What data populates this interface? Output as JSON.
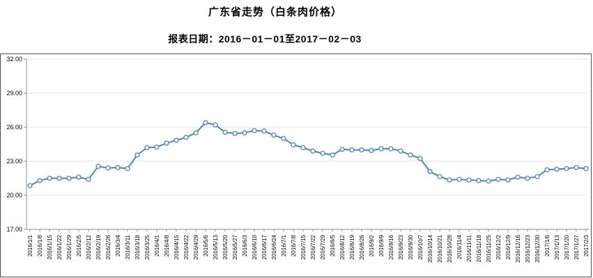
{
  "page": {
    "title": "广东省走势（白条肉价格）",
    "subtitle": "报表日期：2016－01－01至2017－02－03"
  },
  "chart_data": {
    "type": "line",
    "title": "广东省走势（白条肉价格）",
    "subtitle": "报表日期：2016－01－01至2017－02－03",
    "series_name": "白条肉价格",
    "x": [
      "2016/1/1",
      "2016/1/8",
      "2016/1/15",
      "2016/1/22",
      "2016/1/29",
      "2016/2/5",
      "2016/2/12",
      "2016/2/19",
      "2016/2/26",
      "2016/3/4",
      "2016/3/11",
      "2016/3/18",
      "2016/3/25",
      "2016/4/1",
      "2016/4/8",
      "2016/4/15",
      "2016/4/22",
      "2016/4/29",
      "2016/5/6",
      "2016/5/13",
      "2016/5/20",
      "2016/5/27",
      "2016/6/3",
      "2016/6/10",
      "2016/6/17",
      "2016/6/24",
      "2016/7/1",
      "2016/7/8",
      "2016/7/15",
      "2016/7/22",
      "2016/7/29",
      "2016/8/5",
      "2016/8/12",
      "2016/8/19",
      "2016/8/26",
      "2016/9/2",
      "2016/9/9",
      "2016/9/16",
      "2016/9/23",
      "2016/9/30",
      "2016/10/7",
      "2016/10/14",
      "2016/10/21",
      "2016/10/28",
      "2016/11/4",
      "2016/11/11",
      "2016/11/18",
      "2016/11/25",
      "2016/12/2",
      "2016/12/9",
      "2016/12/16",
      "2016/12/23",
      "2016/12/30",
      "2017/1/6",
      "2017/1/13",
      "2017/1/20",
      "2017/1/27",
      "2017/2/3"
    ],
    "values": [
      20.85,
      21.3,
      21.5,
      21.5,
      21.5,
      21.6,
      21.4,
      22.55,
      22.4,
      22.45,
      22.35,
      23.55,
      24.2,
      24.25,
      24.6,
      24.85,
      25.1,
      25.5,
      26.4,
      26.2,
      25.55,
      25.45,
      25.5,
      25.7,
      25.65,
      25.3,
      25.0,
      24.45,
      24.2,
      23.9,
      23.7,
      23.55,
      24.05,
      24.0,
      24.0,
      23.95,
      24.1,
      24.1,
      23.9,
      23.55,
      23.25,
      22.1,
      21.65,
      21.35,
      21.4,
      21.35,
      21.3,
      21.25,
      21.4,
      21.35,
      21.6,
      21.5,
      21.65,
      22.25,
      22.3,
      22.35,
      22.45,
      22.35
    ],
    "ylim": [
      17,
      32
    ],
    "yticks": [
      32,
      29,
      26,
      23,
      20,
      17
    ],
    "ytick_labels": [
      "32.00",
      "29.00",
      "26.00",
      "23.00",
      "20.00",
      "17.00"
    ],
    "grid": true,
    "legend": "none",
    "line_color": "#4f81bd",
    "marker": "open-circle",
    "marker_fill": "#ffffff",
    "grid_color": "#dbe5f1",
    "axis_color": "#8c8c8c"
  }
}
